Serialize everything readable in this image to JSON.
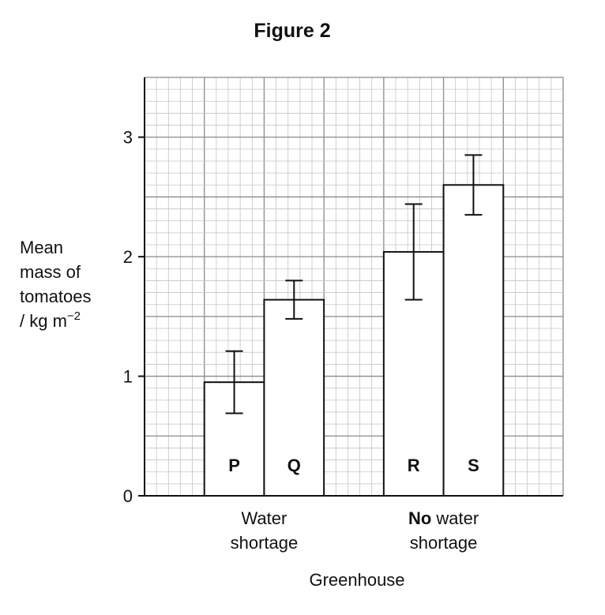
{
  "chart_data": {
    "type": "bar",
    "title": "Figure 2",
    "categories": [
      "P",
      "Q",
      "R",
      "S"
    ],
    "values": [
      0.95,
      1.64,
      2.04,
      2.6
    ],
    "errors": [
      0.26,
      0.16,
      0.4,
      0.25
    ],
    "groups": [
      {
        "lines": [
          "Water",
          "shortage"
        ]
      },
      {
        "bold": "No",
        "lines": [
          "water",
          "shortage"
        ]
      }
    ],
    "ylabel": {
      "lines": [
        "Mean",
        "mass of",
        "tomatoes"
      ],
      "unit": "/ kg m",
      "sup": "−2"
    },
    "xlabel": "Greenhouse",
    "ylim": [
      0,
      3.5
    ],
    "yticks": [
      0,
      1,
      2,
      3
    ],
    "grid": true
  }
}
